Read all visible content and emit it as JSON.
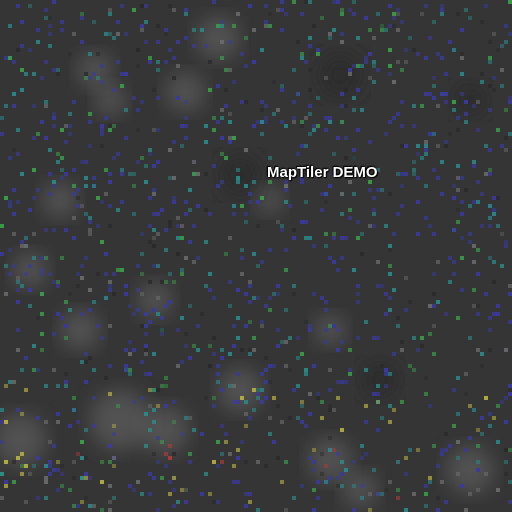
{
  "map": {
    "watermark": "MapTiler DEMO",
    "colors": {
      "background": "#353535",
      "noise_dark": "#2a2a2a",
      "noise_light": "#6a6a6a",
      "dot_blue": "#3a3aa0",
      "dot_green": "#3aa04a",
      "dot_teal": "#2a8a8a",
      "dot_yellow": "#b8b040",
      "dot_red": "#b03a3a"
    },
    "icons": [
      "noise-tile-texture"
    ]
  }
}
